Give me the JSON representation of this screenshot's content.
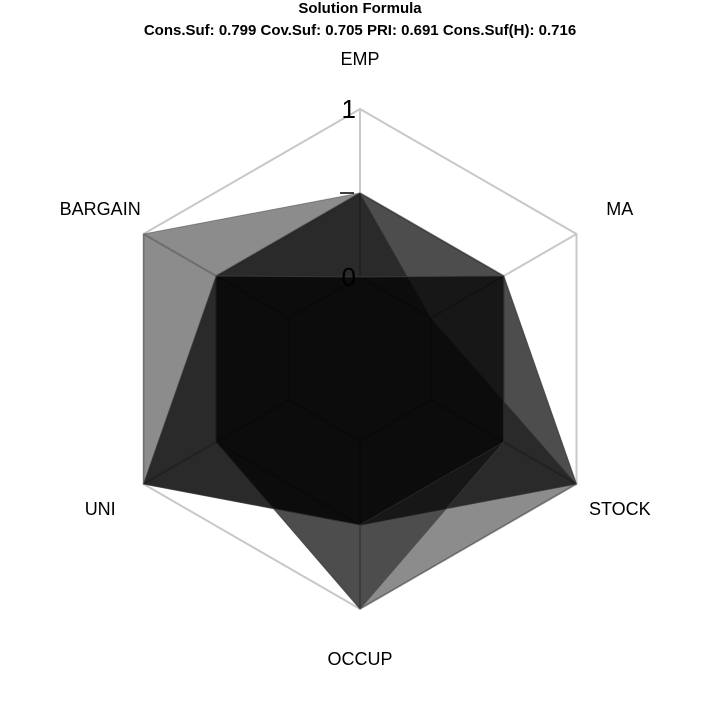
{
  "chart_data": {
    "type": "radar",
    "title": "Solution Formula",
    "subtitle": "Cons.Suf: 0.799 Cov.Suf: 0.705 PRI: 0.691 Cons.Suf(H): 0.716",
    "axes": [
      "EMP",
      "MA",
      "STOCK",
      "OCCUP",
      "UNI",
      "BARGAIN"
    ],
    "tick_labels": [
      "0",
      "",
      "1"
    ],
    "range": [
      0,
      1
    ],
    "grid_levels": [
      0,
      0.5,
      1
    ],
    "fill_color": "#000000",
    "grid_color": "#c8c8c8",
    "series": [
      {
        "values": [
          0.5,
          0.5,
          1.0,
          0.5,
          1.0,
          1.0
        ]
      },
      {
        "values": [
          0.5,
          0.5,
          1.0,
          1.0,
          0.5,
          0.5
        ]
      },
      {
        "values": [
          0.5,
          0.0,
          1.0,
          0.5,
          1.0,
          0.5
        ]
      },
      {
        "values": [
          0.0,
          0.5,
          0.5,
          1.0,
          0.5,
          0.5
        ]
      },
      {
        "values": [
          0.0,
          0.5,
          0.5,
          0.5,
          1.0,
          0.5
        ]
      }
    ]
  }
}
